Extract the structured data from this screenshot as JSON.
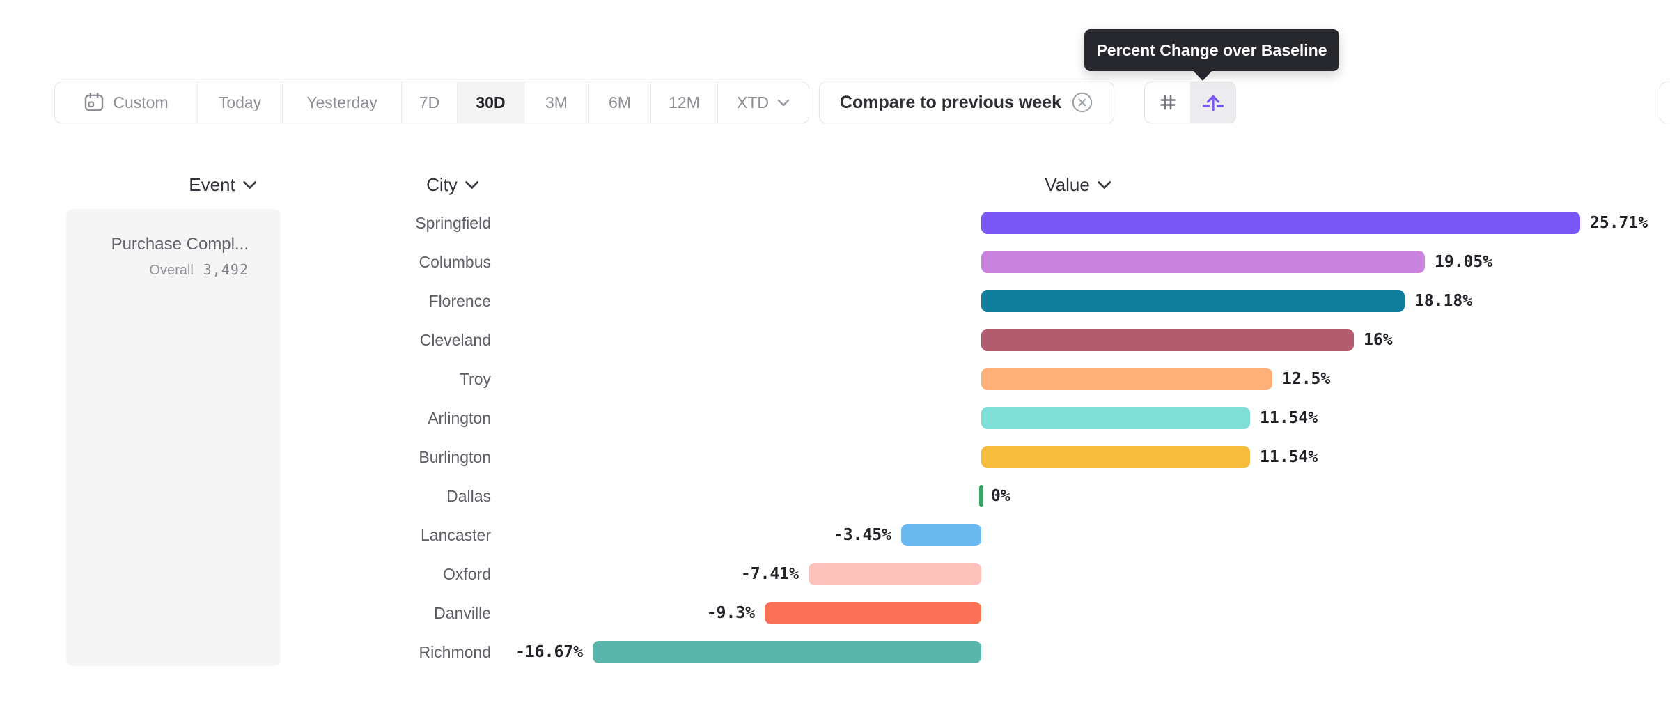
{
  "tooltip": {
    "text": "Percent Change over Baseline"
  },
  "toolbar": {
    "date_ranges": [
      {
        "label": "Custom",
        "selected": false,
        "icon": "calendar-icon"
      },
      {
        "label": "Today",
        "selected": false
      },
      {
        "label": "Yesterday",
        "selected": false
      },
      {
        "label": "7D",
        "selected": false
      },
      {
        "label": "30D",
        "selected": true
      },
      {
        "label": "3M",
        "selected": false
      },
      {
        "label": "6M",
        "selected": false
      },
      {
        "label": "12M",
        "selected": false
      },
      {
        "label": "XTD",
        "selected": false,
        "has_chevron": true
      }
    ],
    "selected_range": "30D",
    "compare_chip": {
      "label": "Compare to previous week",
      "icon": "x-circle-icon"
    },
    "view_toggle": [
      {
        "name": "absolute-numbers-view",
        "icon": "hash-icon",
        "selected": false
      },
      {
        "name": "percent-change-view",
        "icon": "arrow-over-baseline-icon",
        "selected": true
      }
    ]
  },
  "table": {
    "columns": [
      {
        "label": "Event",
        "sortable": true
      },
      {
        "label": "City",
        "sortable": true
      },
      {
        "label": "Value",
        "sortable": true
      }
    ],
    "event_cell": {
      "title": "Purchase Compl...",
      "overall_label": "Overall",
      "overall_value": "3,492"
    }
  },
  "chart_data": {
    "type": "bar",
    "orientation": "horizontal",
    "title": "",
    "xlabel": "Value",
    "ylabel": "City",
    "categories": [
      "Springfield",
      "Columbus",
      "Florence",
      "Cleveland",
      "Troy",
      "Arlington",
      "Burlington",
      "Dallas",
      "Lancaster",
      "Oxford",
      "Danville",
      "Richmond"
    ],
    "values": [
      25.71,
      19.05,
      18.18,
      16,
      12.5,
      11.54,
      11.54,
      0,
      -3.45,
      -7.41,
      -9.3,
      -16.67
    ],
    "value_labels": [
      "25.71%",
      "19.05%",
      "18.18%",
      "16%",
      "12.5%",
      "11.54%",
      "11.54%",
      "0%",
      "-3.45%",
      "-7.41%",
      "-9.3%",
      "-16.67%"
    ],
    "bar_colors": [
      "#7957f6",
      "#c983de",
      "#117d9c",
      "#b25a6d",
      "#feb078",
      "#7fdfd6",
      "#f6bd3d",
      "#35a768",
      "#6cb9ef",
      "#fcc2bb",
      "#fb7157",
      "#5ab5ab"
    ],
    "unit": "%",
    "baseline": 0,
    "xlim": [
      -16.67,
      25.71
    ],
    "grid": false,
    "legend": false
  },
  "colors": {
    "accent": "#7a57f7",
    "zero_tick_green": "#35a768",
    "tooltip_bg": "#27272e",
    "selected_segment_bg": "#f4f4f5"
  }
}
